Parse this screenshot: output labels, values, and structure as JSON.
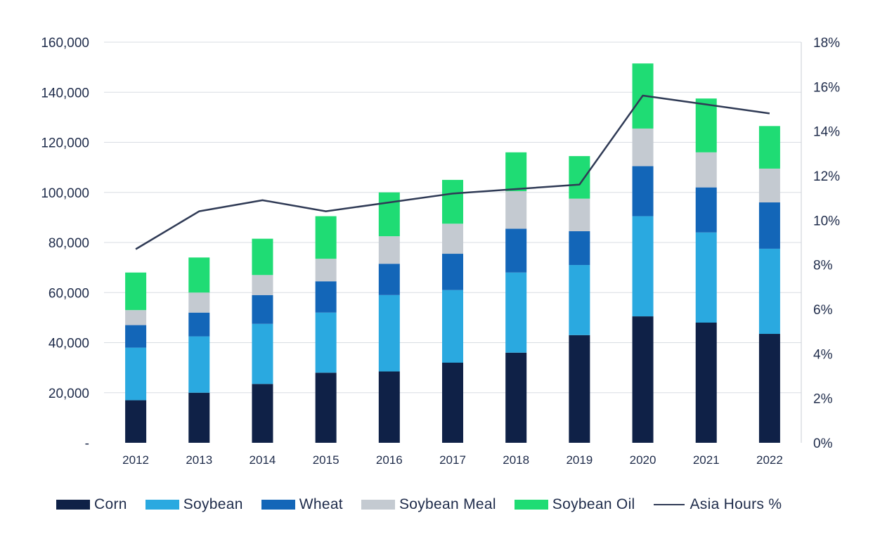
{
  "colors": {
    "Corn": "#0f2147",
    "Soybean": "#2aa9e0",
    "Wheat": "#1366b8",
    "Soybean Meal": "#c4cad1",
    "Soybean Oil": "#1fdc74",
    "Asia Hours %": "#2f3a55",
    "grid": "#d9dde3"
  },
  "legend": [
    {
      "name": "Corn",
      "type": "bar"
    },
    {
      "name": "Soybean",
      "type": "bar"
    },
    {
      "name": "Wheat",
      "type": "bar"
    },
    {
      "name": "Soybean Meal",
      "type": "bar"
    },
    {
      "name": "Soybean Oil",
      "type": "bar"
    },
    {
      "name": "Asia Hours %",
      "type": "line"
    }
  ],
  "chart_data": {
    "type": "bar",
    "stacked": true,
    "title": "",
    "xlabel": "",
    "ylabel": "",
    "categories": [
      "2012",
      "2013",
      "2014",
      "2015",
      "2016",
      "2017",
      "2018",
      "2019",
      "2020",
      "2021",
      "2022"
    ],
    "series": [
      {
        "name": "Corn",
        "values": [
          17000,
          20000,
          23500,
          28000,
          28500,
          32000,
          36000,
          43000,
          50500,
          48000,
          43500
        ]
      },
      {
        "name": "Soybean",
        "values": [
          21000,
          22500,
          24000,
          24000,
          30500,
          29000,
          32000,
          28000,
          40000,
          36000,
          34000
        ]
      },
      {
        "name": "Wheat",
        "values": [
          9000,
          9500,
          11500,
          12500,
          12500,
          14500,
          17500,
          13500,
          20000,
          18000,
          18500
        ]
      },
      {
        "name": "Soybean Meal",
        "values": [
          6000,
          8000,
          8000,
          9000,
          11000,
          12000,
          15000,
          13000,
          15000,
          14000,
          13500
        ]
      },
      {
        "name": "Soybean Oil",
        "values": [
          15000,
          14000,
          14500,
          17000,
          17500,
          17500,
          15500,
          17000,
          26000,
          21500,
          17000
        ]
      }
    ],
    "line_series": {
      "name": "Asia Hours %",
      "axis": "right",
      "values": [
        8.7,
        10.4,
        10.9,
        10.4,
        10.8,
        11.2,
        11.4,
        11.6,
        15.6,
        15.2,
        14.8
      ]
    },
    "y_axis_left": {
      "range": [
        0,
        160000
      ],
      "ticks": [
        "-",
        "20,000",
        "40,000",
        "60,000",
        "80,000",
        "100,000",
        "120,000",
        "140,000",
        "160,000"
      ]
    },
    "y_axis_right": {
      "range": [
        0,
        18
      ],
      "ticks": [
        "0%",
        "2%",
        "4%",
        "6%",
        "8%",
        "10%",
        "12%",
        "14%",
        "16%",
        "18%"
      ]
    },
    "grid": true,
    "legend_position": "bottom"
  }
}
